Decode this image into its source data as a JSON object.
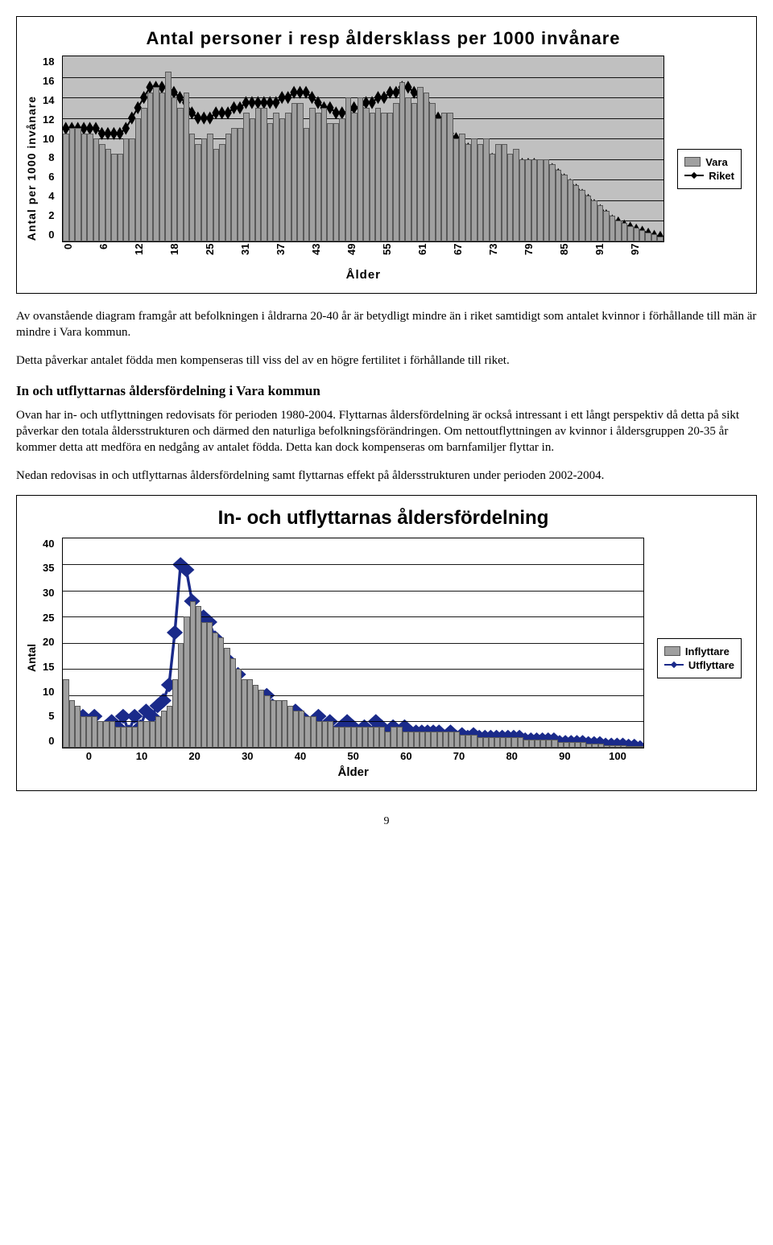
{
  "chart1": {
    "title": "Antal personer i resp åldersklass per 1000 invånare",
    "y_label": "Antal per 1000 invånare",
    "x_label": "Ålder",
    "ymax": 18,
    "yticks": [
      "18",
      "16",
      "14",
      "12",
      "10",
      "8",
      "6",
      "4",
      "2",
      "0"
    ],
    "xticks": [
      "0",
      "6",
      "12",
      "18",
      "25",
      "31",
      "37",
      "43",
      "49",
      "55",
      "61",
      "67",
      "73",
      "79",
      "85",
      "91",
      "97"
    ],
    "bar_color": "#a0a0a0",
    "line_color": "#000000",
    "plot_bg": "#c0c0c0",
    "legend": {
      "bar": "Vara",
      "line": "Riket"
    },
    "bars": [
      10.5,
      11,
      11,
      10.5,
      10.5,
      10,
      9.5,
      9,
      8.5,
      8.5,
      10,
      10,
      12,
      13,
      14.5,
      15,
      14.5,
      16.5,
      14,
      13,
      14.5,
      10.5,
      9.5,
      10,
      10.5,
      9,
      9.5,
      10.5,
      11,
      11,
      12.5,
      12,
      13,
      13,
      11.5,
      12.5,
      12,
      12.5,
      13.5,
      13.5,
      11,
      13,
      12.5,
      13,
      11.5,
      11.5,
      12,
      14,
      12.5,
      14,
      13,
      12.5,
      13,
      12.5,
      12.5,
      13.5,
      15.5,
      14,
      13.5,
      15,
      14.5,
      13.5,
      12,
      12.5,
      12.5,
      10,
      10.5,
      9.5,
      10,
      9.5,
      10,
      8.5,
      9.5,
      9.5,
      8.5,
      9,
      8,
      8,
      8,
      8,
      8,
      7.5,
      7,
      6.5,
      6,
      5.5,
      5,
      4.5,
      4,
      3.5,
      3,
      2.5,
      2,
      1.8,
      1.5,
      1.3,
      1.1,
      0.9,
      0.7,
      0.5
    ],
    "line": [
      11,
      11,
      11,
      11,
      11,
      11,
      10.5,
      10.5,
      10.5,
      10.5,
      11,
      12,
      13,
      14,
      15,
      15,
      15,
      15,
      14.5,
      14,
      13.5,
      12.5,
      12,
      12,
      12,
      12.5,
      12.5,
      12.5,
      13,
      13,
      13.5,
      13.5,
      13.5,
      13.5,
      13.5,
      13.5,
      14,
      14,
      14.5,
      14.5,
      14.5,
      14,
      13.5,
      13,
      13,
      12.5,
      12.5,
      12.5,
      13,
      13,
      13.5,
      13.5,
      14,
      14,
      14.5,
      14.5,
      15,
      15,
      14.5,
      14,
      13.5,
      12.5,
      12,
      11,
      10.5,
      10,
      9.5,
      9,
      9,
      8.5,
      8.5,
      8,
      8,
      8,
      7.5,
      7.5,
      7.5,
      7.5,
      7.5,
      7,
      7,
      7,
      6.5,
      6,
      5.5,
      5,
      4.5,
      4,
      3.5,
      3,
      2.5,
      2,
      1.8,
      1.5,
      1.3,
      1.1,
      0.9,
      0.7,
      0.5,
      0.4
    ]
  },
  "para1": "Av ovanstående diagram framgår att befolkningen i åldrarna 20-40 år är betydligt mindre än i riket samtidigt som antalet kvinnor i förhållande till män är mindre i Vara kommun.",
  "para2": "Detta påverkar antalet födda men kompenseras till viss del av en högre fertilitet i förhållande till riket.",
  "heading2": "In och utflyttarnas åldersfördelning i Vara kommun",
  "para3": "Ovan har in- och utflyttningen redovisats för perioden 1980-2004. Flyttarnas åldersfördelning är också intressant i ett långt perspektiv då detta på sikt påverkar den totala åldersstrukturen och därmed den naturliga befolkningsförändringen. Om nettoutflyttningen av kvinnor i åldersgruppen 20-35 år kommer detta att medföra en nedgång av antalet födda. Detta kan dock kompenseras om barnfamiljer flyttar in.",
  "para4": "Nedan redovisas in och utflyttarnas åldersfördelning samt flyttarnas effekt på åldersstrukturen under perioden 2002-2004.",
  "chart2": {
    "title": "In- och utflyttarnas åldersfördelning",
    "y_label": "Antal",
    "x_label": "Ålder",
    "ymax": 40,
    "yticks": [
      "40",
      "35",
      "30",
      "25",
      "20",
      "15",
      "10",
      "5",
      "0"
    ],
    "xticks": [
      "0",
      "10",
      "20",
      "30",
      "40",
      "50",
      "60",
      "70",
      "80",
      "90",
      "100"
    ],
    "bar_color": "#a0a0a0",
    "line_color": "#1a2a8a",
    "plot_bg": "#ffffff",
    "legend": {
      "bar": "Inflyttare",
      "line": "Utflyttare"
    },
    "bars": [
      13,
      9,
      8,
      6,
      6,
      6,
      5,
      5,
      5,
      4,
      4,
      4,
      4,
      5,
      5,
      5,
      6,
      7,
      8,
      13,
      20,
      25,
      28,
      27,
      24,
      24,
      22,
      21,
      19,
      17,
      15,
      13,
      13,
      12,
      11,
      10,
      9,
      9,
      9,
      8,
      7,
      7,
      6,
      6,
      5,
      5,
      5,
      4,
      4,
      4,
      4,
      4,
      4,
      4,
      4,
      4,
      3,
      4,
      4,
      3,
      3,
      3,
      3,
      3,
      3,
      3,
      3,
      3,
      3,
      2.5,
      2.5,
      2.5,
      2,
      2,
      2,
      2,
      2,
      2,
      2,
      2,
      1.5,
      1.5,
      1.5,
      1.5,
      1.5,
      1.5,
      1,
      1,
      1,
      1,
      1,
      0.8,
      0.8,
      0.8,
      0.5,
      0.5,
      0.5,
      0.5,
      0.3,
      0.3,
      0
    ],
    "line": [
      5,
      7,
      4,
      6,
      3,
      6,
      3,
      4,
      5,
      4,
      6,
      3,
      6,
      4,
      7,
      6,
      8,
      9,
      12,
      22,
      35,
      34,
      28,
      24,
      25,
      24,
      21,
      16,
      17,
      13,
      14,
      11,
      10,
      8,
      9,
      10,
      8,
      6,
      7,
      5,
      7,
      6,
      5,
      4,
      6,
      4,
      5,
      3,
      4,
      5,
      4,
      3,
      4,
      3,
      5,
      4,
      3,
      4,
      3,
      4,
      3,
      3,
      3,
      3,
      3,
      3,
      2,
      3,
      2,
      2.5,
      2,
      2.5,
      2,
      2,
      2,
      2,
      2,
      2,
      2,
      2,
      1.5,
      1.5,
      1.5,
      1.5,
      1.5,
      1.5,
      1,
      1,
      1,
      1,
      1,
      0.8,
      0.8,
      0.8,
      0.5,
      0.5,
      0.5,
      0.5,
      0.3,
      0.3,
      0
    ]
  },
  "page_number": "9"
}
